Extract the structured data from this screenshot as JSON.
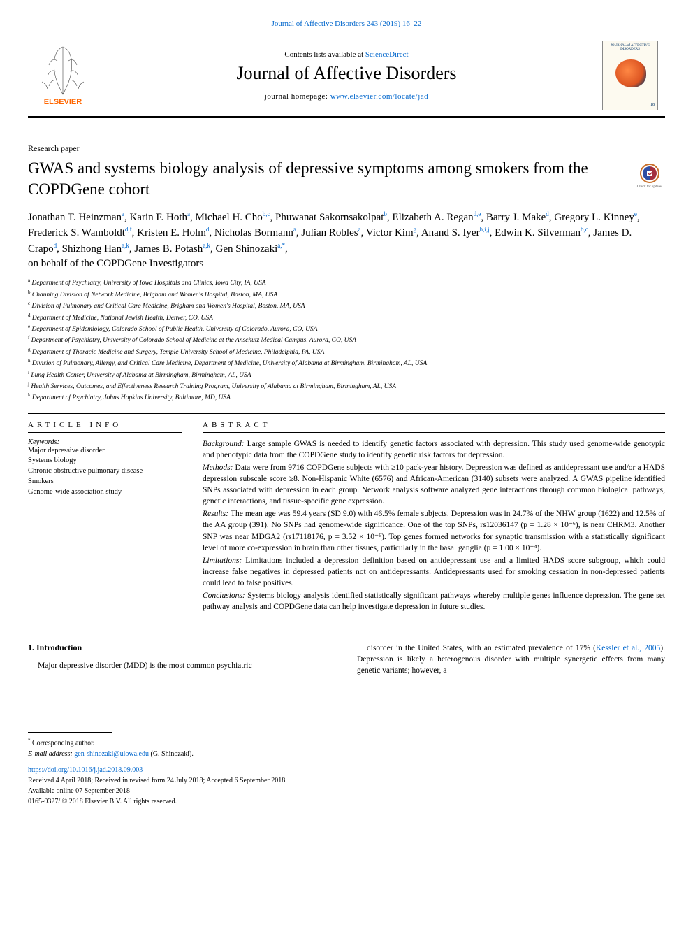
{
  "top_link_prefix": "Journal of Affective Disorders 243 (2019) 16–22",
  "banner": {
    "contents_prefix": "Contents lists available at ",
    "contents_link": "ScienceDirect",
    "journal_title": "Journal of Affective Disorders",
    "home_prefix": "journal homepage: ",
    "home_link": "www.elsevier.com/locate/jad",
    "cover_head": "JOURNAL of AFFECTIVE DISORDERS",
    "cover_year": "18",
    "elsevier_text": "ELSEVIER"
  },
  "paper_type": "Research paper",
  "title": "GWAS and systems biology analysis of depressive symptoms among smokers from the COPDGene cohort",
  "updates_label": "Check for updates",
  "authors_html_parts": [
    {
      "n": "Jonathan T. Heinzman",
      "s": "a"
    },
    {
      "n": ", Karin F. Hoth",
      "s": "a"
    },
    {
      "n": ", Michael H. Cho",
      "s": "b,c"
    },
    {
      "n": ", Phuwanat Sakornsakolpat",
      "s": "b"
    },
    {
      "n": ", Elizabeth A. Regan",
      "s": "d,e"
    },
    {
      "n": ", Barry J. Make",
      "s": "d"
    },
    {
      "n": ", Gregory L. Kinney",
      "s": "e"
    },
    {
      "n": ", Frederick S. Wamboldt",
      "s": "d,f"
    },
    {
      "n": ", Kristen E. Holm",
      "s": "d"
    },
    {
      "n": ", Nicholas Bormann",
      "s": "a"
    },
    {
      "n": ", Julian Robles",
      "s": "a"
    },
    {
      "n": ", Victor Kim",
      "s": "g"
    },
    {
      "n": ", Anand S. Iyer",
      "s": "h,i,j"
    },
    {
      "n": ", Edwin K. Silverman",
      "s": "b,c"
    },
    {
      "n": ", James D. Crapo",
      "s": "d"
    },
    {
      "n": ", Shizhong Han",
      "s": "a,k"
    },
    {
      "n": ", James B. Potash",
      "s": "a,k"
    },
    {
      "n": ", Gen Shinozaki",
      "s": "a,*",
      "last": true
    }
  ],
  "investigators": "on behalf of the COPDGene Investigators",
  "affiliations": [
    {
      "s": "a",
      "t": "Department of Psychiatry, University of Iowa Hospitals and Clinics, Iowa City, IA, USA"
    },
    {
      "s": "b",
      "t": "Channing Division of Network Medicine, Brigham and Women's Hospital, Boston, MA, USA"
    },
    {
      "s": "c",
      "t": "Division of Pulmonary and Critical Care Medicine, Brigham and Women's Hospital, Boston, MA, USA"
    },
    {
      "s": "d",
      "t": "Department of Medicine, National Jewish Health, Denver, CO, USA"
    },
    {
      "s": "e",
      "t": "Department of Epidemiology, Colorado School of Public Health, University of Colorado, Aurora, CO, USA"
    },
    {
      "s": "f",
      "t": "Department of Psychiatry, University of Colorado School of Medicine at the Anschutz Medical Campus, Aurora, CO, USA"
    },
    {
      "s": "g",
      "t": "Department of Thoracic Medicine and Surgery, Temple University School of Medicine, Philadelphia, PA, USA"
    },
    {
      "s": "h",
      "t": "Division of Pulmonary, Allergy, and Critical Care Medicine, Department of Medicine, University of Alabama at Birmingham, Birmingham, AL, USA"
    },
    {
      "s": "i",
      "t": "Lung Health Center, University of Alabama at Birmingham, Birmingham, AL, USA"
    },
    {
      "s": "j",
      "t": "Health Services, Outcomes, and Effectiveness Research Training Program, University of Alabama at Birmingham, Birmingham, AL, USA"
    },
    {
      "s": "k",
      "t": "Department of Psychiatry, Johns Hopkins University, Baltimore, MD, USA"
    }
  ],
  "info": {
    "label": "ARTICLE INFO",
    "kw_head": "Keywords:",
    "keywords": [
      "Major depressive disorder",
      "Systems biology",
      "Chronic obstructive pulmonary disease",
      "Smokers",
      "Genome-wide association study"
    ]
  },
  "abstract": {
    "label": "ABSTRACT",
    "paras": [
      {
        "lead": "Background:",
        "body": " Large sample GWAS is needed to identify genetic factors associated with depression. This study used genome-wide genotypic and phenotypic data from the COPDGene study to identify genetic risk factors for depression."
      },
      {
        "lead": "Methods:",
        "body": " Data were from 9716 COPDGene subjects with ≥10 pack-year history. Depression was defined as antidepressant use and/or a HADS depression subscale score ≥8. Non-Hispanic White (6576) and African-American (3140) subsets were analyzed. A GWAS pipeline identified SNPs associated with depression in each group. Network analysis software analyzed gene interactions through common biological pathways, genetic interactions, and tissue-specific gene expression."
      },
      {
        "lead": "Results:",
        "body": " The mean age was 59.4 years (SD 9.0) with 46.5% female subjects. Depression was in 24.7% of the NHW group (1622) and 12.5% of the AA group (391). No SNPs had genome-wide significance. One of the top SNPs, rs12036147 (p = 1.28 × 10⁻⁶), is near CHRM3. Another SNP was near MDGA2 (rs17118176, p = 3.52 × 10⁻⁶). Top genes formed networks for synaptic transmission with a statistically significant level of more co-expression in brain than other tissues, particularly in the basal ganglia (p = 1.00 × 10⁻⁴)."
      },
      {
        "lead": "Limitations:",
        "body": " Limitations included a depression definition based on antidepressant use and a limited HADS score subgroup, which could increase false negatives in depressed patients not on antidepressants. Antidepressants used for smoking cessation in non-depressed patients could lead to false positives."
      },
      {
        "lead": "Conclusions:",
        "body": " Systems biology analysis identified statistically significant pathways whereby multiple genes influence depression. The gene set pathway analysis and COPDGene data can help investigate depression in future studies."
      }
    ]
  },
  "intro": {
    "heading": "1. Introduction",
    "left": "Major depressive disorder (MDD) is the most common psychiatric",
    "right_prefix": "disorder in the United States, with an estimated prevalence of 17% (",
    "right_link": "Kessler et al., 2005",
    "right_suffix": "). Depression is likely a heterogenous disorder with multiple synergetic effects from many genetic variants; however, a"
  },
  "footnotes": {
    "corr_mark": "*",
    "corr_text": " Corresponding author.",
    "email_label": "E-mail address: ",
    "email": "gen-shinozaki@uiowa.edu",
    "email_suffix": " (G. Shinozaki).",
    "doi": "https://doi.org/10.1016/j.jad.2018.09.003",
    "received": "Received 4 April 2018; Received in revised form 24 July 2018; Accepted 6 September 2018",
    "online": "Available online 07 September 2018",
    "copyright": "0165-0327/ © 2018 Elsevier B.V. All rights reserved."
  },
  "colors": {
    "link": "#0066cc",
    "rule": "#000000",
    "badge_ring": "#c96f2a",
    "badge_fill": "#ffffff"
  }
}
